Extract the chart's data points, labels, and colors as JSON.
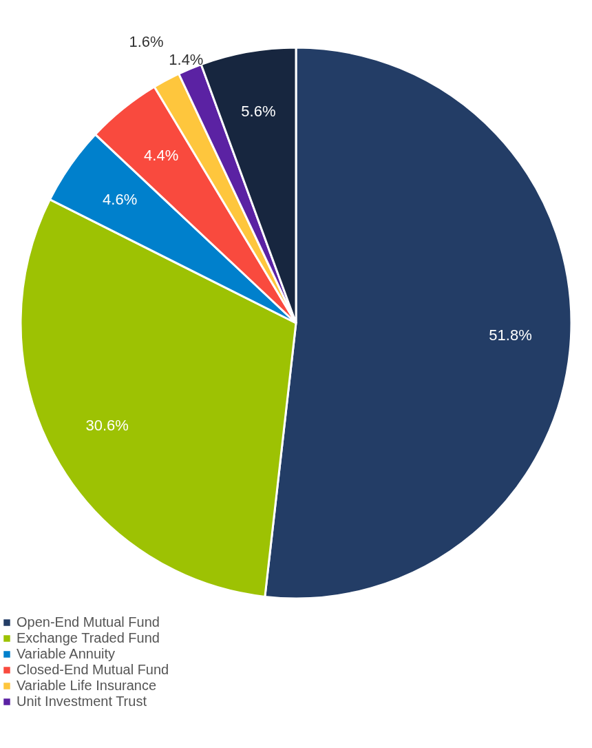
{
  "chart_data": {
    "type": "pie",
    "categories": [
      "Open-End Mutual Fund",
      "Exchange Traded Fund",
      "Variable Annuity",
      "Closed-End Mutual Fund",
      "Variable Life Insurance",
      "Unit Investment Trust",
      null
    ],
    "values": [
      51.8,
      30.6,
      4.6,
      4.4,
      1.6,
      1.4,
      5.6
    ],
    "value_labels": [
      "51.8%",
      "30.6%",
      "4.6%",
      "4.4%",
      "1.6%",
      "1.4%",
      "5.6%"
    ],
    "colors": [
      "#233d66",
      "#9dc203",
      "#0080cc",
      "#f94a3e",
      "#fec63d",
      "#5b22a3",
      "#17263f"
    ],
    "legend": "bottom"
  }
}
